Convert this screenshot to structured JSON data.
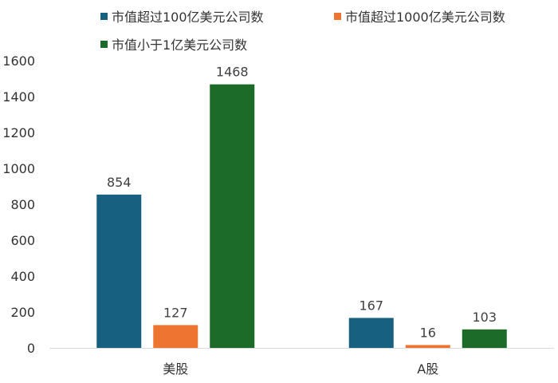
{
  "chart_data": {
    "type": "bar",
    "categories": [
      "美股",
      "A股"
    ],
    "series": [
      {
        "name": "市值超过100亿美元公司数",
        "values": [
          854,
          167
        ],
        "color": "#17607f"
      },
      {
        "name": "市值超过1000亿美元公司数",
        "values": [
          127,
          16
        ],
        "color": "#ed7431"
      },
      {
        "name": "市值小于1亿美元公司数",
        "values": [
          1468,
          103
        ],
        "color": "#1d6b29"
      }
    ],
    "yticks": [
      0,
      200,
      400,
      600,
      800,
      1000,
      1200,
      1400,
      1600
    ],
    "ylim": [
      0,
      1600
    ],
    "data_labels": true,
    "legend_position": "top",
    "grid": false
  }
}
